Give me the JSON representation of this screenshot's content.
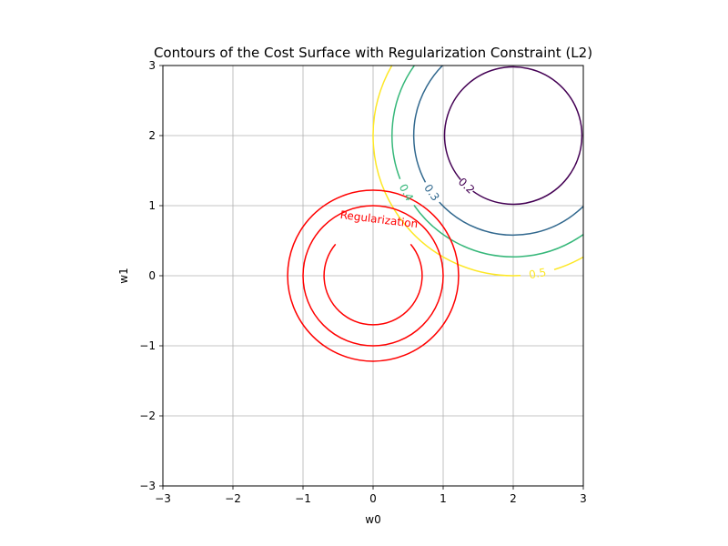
{
  "chart_data": {
    "type": "contour",
    "title": "Contours of the Cost Surface with Regularization Constraint (L2)",
    "xlabel": "w0",
    "ylabel": "w1",
    "xlim": [
      -3,
      3
    ],
    "ylim": [
      -3,
      3
    ],
    "xticks": [
      -3,
      -2,
      -1,
      0,
      1,
      2,
      3
    ],
    "yticks": [
      -3,
      -2,
      -1,
      0,
      1,
      2,
      3
    ],
    "xtick_labels": [
      "−3",
      "−2",
      "−1",
      "0",
      "1",
      "2",
      "3"
    ],
    "ytick_labels": [
      "−3",
      "−2",
      "−1",
      "0",
      "1",
      "2",
      "3"
    ],
    "grid": true,
    "cost_contours": {
      "center": [
        2,
        2
      ],
      "levels": [
        {
          "value": 0.2,
          "label": "0.2",
          "radius": 0.98,
          "color": "#440154"
        },
        {
          "value": 0.3,
          "label": "0.3",
          "radius": 1.42,
          "color": "#31688e"
        },
        {
          "value": 0.4,
          "label": "0.4",
          "radius": 1.73,
          "color": "#35b779"
        },
        {
          "value": 0.5,
          "label": "0.5",
          "radius": 2.0,
          "color": "#fde725"
        }
      ]
    },
    "regularization_contours": {
      "center": [
        0,
        0
      ],
      "label": "Regularization",
      "color": "#ff0000",
      "radii": [
        0.7,
        1.0,
        1.22
      ]
    }
  }
}
